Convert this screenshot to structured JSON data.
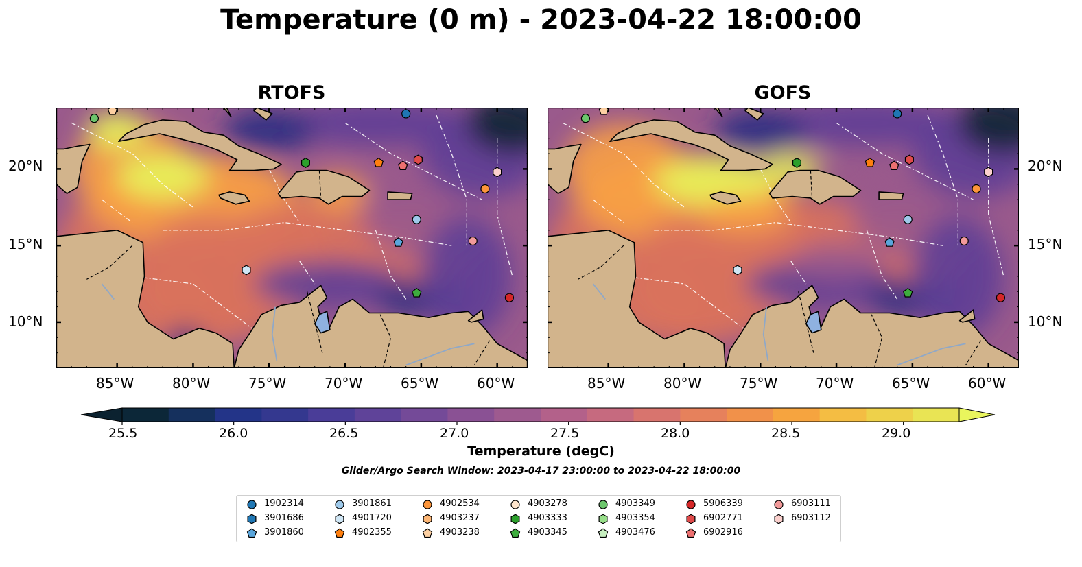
{
  "title": "Temperature (0 m) - 2023-04-22 18:00:00",
  "panels": [
    {
      "title": "RTOFS"
    },
    {
      "title": "GOFS"
    }
  ],
  "map": {
    "lon_range": [
      -89,
      -58
    ],
    "lat_range": [
      7,
      24
    ],
    "lon_ticks": [
      "85°W",
      "80°W",
      "75°W",
      "70°W",
      "65°W",
      "60°W"
    ],
    "lat_ticks": [
      "20°N",
      "15°N",
      "10°N"
    ],
    "land_color": "#d2b48c",
    "ocean_palette": [
      "#0b2433",
      "#2a2f82",
      "#5e3f96",
      "#9a5a8c",
      "#d9725c",
      "#f7a045",
      "#e5f45a"
    ]
  },
  "colorbar": {
    "label": "Temperature (degC)",
    "ticks": [
      "25.5",
      "26.0",
      "26.5",
      "27.0",
      "27.5",
      "28.0",
      "28.5",
      "29.0"
    ],
    "range": [
      25.5,
      29.25
    ],
    "colors": [
      "#0c2738",
      "#15305d",
      "#233488",
      "#34388f",
      "#4a3d98",
      "#5f4399",
      "#744a98",
      "#8a5194",
      "#9e5a8f",
      "#b3618a",
      "#c66a7f",
      "#d8746e",
      "#e6815c",
      "#f1914a",
      "#f6a43f",
      "#f4bd43",
      "#eed14a",
      "#e9e454"
    ],
    "extend_low": "#0b2230",
    "extend_high": "#e9f55d"
  },
  "search_window": "Glider/Argo Search Window: 2023-04-17 23:00:00 to 2023-04-22 18:00:00",
  "legend": {
    "columns": [
      [
        {
          "id": "1902314",
          "marker": "circle",
          "color": "#1f77b4"
        },
        {
          "id": "3901686",
          "marker": "hexagon",
          "color": "#1f77b4"
        },
        {
          "id": "3901860",
          "marker": "pentagon",
          "color": "#5aa6dc"
        }
      ],
      [
        {
          "id": "3901861",
          "marker": "circle",
          "color": "#9ec9ea"
        },
        {
          "id": "4901720",
          "marker": "hexagon",
          "color": "#cfe6f5"
        },
        {
          "id": "4902355",
          "marker": "pentagon",
          "color": "#ff7f0e"
        }
      ],
      [
        {
          "id": "4902534",
          "marker": "circle",
          "color": "#fd953a"
        },
        {
          "id": "4903237",
          "marker": "hexagon",
          "color": "#fdb675"
        },
        {
          "id": "4903238",
          "marker": "pentagon",
          "color": "#fdd0a2"
        }
      ],
      [
        {
          "id": "4903278",
          "marker": "circle",
          "color": "#fde4cc"
        },
        {
          "id": "4903333",
          "marker": "hexagon",
          "color": "#2ca02c"
        },
        {
          "id": "4903345",
          "marker": "pentagon",
          "color": "#3ead3e"
        }
      ],
      [
        {
          "id": "4903349",
          "marker": "circle",
          "color": "#6cc66c"
        },
        {
          "id": "4903354",
          "marker": "hexagon",
          "color": "#98df8a"
        },
        {
          "id": "4903476",
          "marker": "pentagon",
          "color": "#c7efc0"
        }
      ],
      [
        {
          "id": "5906339",
          "marker": "circle",
          "color": "#d62728"
        },
        {
          "id": "6902771",
          "marker": "hexagon",
          "color": "#e04a4a"
        },
        {
          "id": "6902916",
          "marker": "pentagon",
          "color": "#ec7070"
        }
      ],
      [
        {
          "id": "6903111",
          "marker": "circle",
          "color": "#f29a9a"
        },
        {
          "id": "6903112",
          "marker": "hexagon",
          "color": "#fbd0cd"
        }
      ]
    ]
  },
  "floats": [
    {
      "id": "4903349",
      "lon": -86.5,
      "lat": 23.3
    },
    {
      "id": "4903238",
      "lon": -85.3,
      "lat": 23.8
    },
    {
      "id": "1902314",
      "lon": -66.0,
      "lat": 23.6
    },
    {
      "id": "4903333",
      "lon": -72.6,
      "lat": 20.4
    },
    {
      "id": "4902355",
      "lon": -67.8,
      "lat": 20.4
    },
    {
      "id": "6902916",
      "lon": -66.2,
      "lat": 20.2
    },
    {
      "id": "6902771",
      "lon": -65.2,
      "lat": 20.6
    },
    {
      "id": "6903112",
      "lon": -60.0,
      "lat": 19.8
    },
    {
      "id": "4902534",
      "lon": -60.8,
      "lat": 18.7
    },
    {
      "id": "3901861",
      "lon": -65.3,
      "lat": 16.7
    },
    {
      "id": "3901860",
      "lon": -66.5,
      "lat": 15.2
    },
    {
      "id": "6903111",
      "lon": -61.6,
      "lat": 15.3
    },
    {
      "id": "4901720",
      "lon": -76.5,
      "lat": 13.4
    },
    {
      "id": "4903345",
      "lon": -65.3,
      "lat": 11.9
    },
    {
      "id": "5906339",
      "lon": -59.2,
      "lat": 11.6
    }
  ]
}
